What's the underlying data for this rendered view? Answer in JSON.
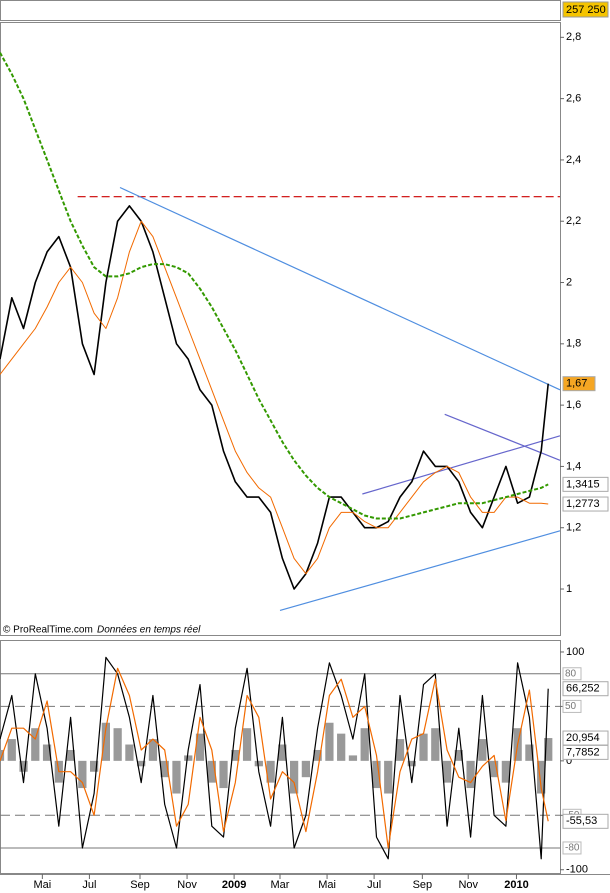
{
  "chart_data": [
    {
      "type": "line",
      "footnote": "© ProRealTime.com",
      "footnote2": "Données en temps réel",
      "volume_label": {
        "value": 257250,
        "label": "257 250"
      },
      "xlim": [
        0,
        23.8
      ],
      "ylim": [
        0.85,
        2.85
      ],
      "yticks": [
        {
          "value": 2.8,
          "label": "2,8"
        },
        {
          "value": 2.6,
          "label": "2,6"
        },
        {
          "value": 2.4,
          "label": "2,4"
        },
        {
          "value": 2.2,
          "label": "2,2"
        },
        2,
        {
          "value": 1.8,
          "label": "1,8"
        },
        {
          "value": 1.6,
          "label": "1,6"
        },
        {
          "value": 1.4,
          "label": "1,4"
        },
        {
          "value": 1.2,
          "label": "1,2"
        },
        1
      ],
      "x": [
        0,
        0.5,
        1,
        1.5,
        2,
        2.5,
        3,
        3.5,
        4,
        4.5,
        5,
        5.5,
        6,
        6.5,
        7,
        7.5,
        8,
        8.5,
        9,
        9.5,
        10,
        10.5,
        11,
        11.5,
        12,
        12.5,
        13,
        13.5,
        14,
        14.5,
        15,
        15.5,
        16,
        16.5,
        17,
        17.5,
        18,
        18.5,
        19,
        19.5,
        20,
        20.5,
        21,
        21.5,
        22,
        22.5,
        23,
        23.3
      ],
      "series": [
        {
          "color": "#000000",
          "width": 1.6,
          "values": [
            1.75,
            1.95,
            1.85,
            2.0,
            2.1,
            2.15,
            2.05,
            1.8,
            1.7,
            2.0,
            2.2,
            2.25,
            2.2,
            2.1,
            1.95,
            1.8,
            1.75,
            1.65,
            1.6,
            1.45,
            1.35,
            1.3,
            1.3,
            1.25,
            1.1,
            1.0,
            1.05,
            1.15,
            1.3,
            1.3,
            1.25,
            1.2,
            1.2,
            1.22,
            1.3,
            1.35,
            1.45,
            1.4,
            1.4,
            1.35,
            1.25,
            1.2,
            1.3,
            1.4,
            1.28,
            1.3,
            1.45,
            1.67
          ]
        },
        {
          "color": "#f26a00",
          "width": 1,
          "values": [
            1.7,
            1.75,
            1.8,
            1.85,
            1.92,
            2.0,
            2.05,
            2.0,
            1.9,
            1.85,
            1.95,
            2.1,
            2.2,
            2.15,
            2.05,
            1.95,
            1.85,
            1.75,
            1.65,
            1.55,
            1.45,
            1.38,
            1.33,
            1.3,
            1.2,
            1.1,
            1.05,
            1.1,
            1.2,
            1.25,
            1.25,
            1.22,
            1.2,
            1.2,
            1.25,
            1.3,
            1.35,
            1.38,
            1.4,
            1.38,
            1.3,
            1.25,
            1.25,
            1.3,
            1.3,
            1.28,
            1.28,
            1.2773
          ]
        },
        {
          "color": "#339900",
          "width": 2,
          "dash": true,
          "values": [
            2.75,
            2.68,
            2.6,
            2.5,
            2.4,
            2.3,
            2.2,
            2.12,
            2.05,
            2.02,
            2.02,
            2.03,
            2.05,
            2.06,
            2.06,
            2.05,
            2.03,
            1.98,
            1.92,
            1.85,
            1.78,
            1.7,
            1.62,
            1.55,
            1.48,
            1.42,
            1.37,
            1.33,
            1.3,
            1.28,
            1.26,
            1.24,
            1.23,
            1.23,
            1.23,
            1.24,
            1.25,
            1.26,
            1.27,
            1.28,
            1.28,
            1.28,
            1.29,
            1.3,
            1.31,
            1.32,
            1.33,
            1.3415
          ]
        }
      ],
      "lines": [
        {
          "color": "#cc0000",
          "dash": true,
          "x": [
            3.3,
            23.8
          ],
          "y": [
            2.28,
            2.28
          ]
        },
        {
          "color": "#4f8ee0",
          "x": [
            5.1,
            23.8
          ],
          "y": [
            2.31,
            1.65
          ]
        },
        {
          "color": "#4f8ee0",
          "x": [
            11.9,
            23.8
          ],
          "y": [
            0.93,
            1.19
          ]
        },
        {
          "color": "#6666cc",
          "x": [
            18.9,
            23.8
          ],
          "y": [
            1.57,
            1.42
          ]
        },
        {
          "color": "#6666cc",
          "x": [
            15.4,
            23.8
          ],
          "y": [
            1.31,
            1.5
          ]
        }
      ],
      "last_labels": [
        {
          "value": 1.67,
          "label": "1,67",
          "color": "#f5a623",
          "text_color": "#000000"
        },
        {
          "value": 1.3415,
          "label": "1,3415",
          "color": "#ffffff",
          "text_color": "#339900"
        },
        {
          "value": 1.2773,
          "label": "1,2773",
          "color": "#ffffff",
          "text_color": "#f26a00"
        }
      ]
    },
    {
      "type": "line",
      "xlim": [
        0,
        23.8
      ],
      "ylim": [
        -103,
        111
      ],
      "yticks": [
        100,
        50,
        0,
        -50,
        -100
      ],
      "xticks": [
        {
          "value": 1.8,
          "label": "Mai"
        },
        {
          "value": 3.8,
          "label": "Jul"
        },
        {
          "value": 5.95,
          "label": "Sep"
        },
        {
          "value": 7.95,
          "label": "Nov"
        },
        {
          "value": 9.95,
          "label": "2009"
        },
        {
          "value": 11.9,
          "label": "Mar"
        },
        {
          "value": 13.9,
          "label": "Mai"
        },
        {
          "value": 15.9,
          "label": "Jul"
        },
        {
          "value": 17.95,
          "label": "Sep"
        },
        {
          "value": 19.9,
          "label": "Nov"
        },
        {
          "value": 21.95,
          "label": "2010"
        }
      ],
      "x": [
        0,
        0.5,
        1,
        1.5,
        2,
        2.5,
        3,
        3.5,
        4,
        4.5,
        5,
        5.5,
        6,
        6.5,
        7,
        7.5,
        8,
        8.5,
        9,
        9.5,
        10,
        10.5,
        11,
        11.5,
        12,
        12.5,
        13,
        13.5,
        14,
        14.5,
        15,
        15.5,
        16,
        16.5,
        17,
        17.5,
        18,
        18.5,
        19,
        19.5,
        20,
        20.5,
        21,
        21.5,
        22,
        22.5,
        23,
        23.3
      ],
      "histogram": {
        "color": "#999999",
        "values": [
          10,
          20,
          -10,
          30,
          15,
          -20,
          10,
          -25,
          -10,
          35,
          30,
          15,
          -5,
          20,
          -15,
          -30,
          5,
          25,
          -20,
          -25,
          10,
          30,
          -5,
          -20,
          15,
          -30,
          -15,
          10,
          35,
          25,
          5,
          30,
          -25,
          -30,
          20,
          -5,
          25,
          30,
          -20,
          10,
          -25,
          20,
          -15,
          -20,
          30,
          15,
          -30,
          20.954
        ]
      },
      "series": [
        {
          "color": "#000000",
          "width": 1.2,
          "values": [
            20,
            60,
            -20,
            80,
            30,
            -60,
            40,
            -80,
            -30,
            95,
            80,
            40,
            -20,
            60,
            -40,
            -80,
            10,
            70,
            -60,
            -70,
            30,
            85,
            -10,
            -60,
            40,
            -80,
            -50,
            30,
            90,
            60,
            20,
            80,
            -70,
            -90,
            60,
            -20,
            70,
            80,
            -60,
            30,
            -70,
            60,
            -50,
            -60,
            90,
            40,
            -90,
            66.252
          ]
        },
        {
          "color": "#f26a00",
          "width": 1.2,
          "values": [
            0,
            30,
            30,
            20,
            55,
            -10,
            -10,
            -20,
            -50,
            30,
            85,
            60,
            10,
            20,
            10,
            -60,
            -40,
            40,
            10,
            -65,
            -20,
            60,
            40,
            -35,
            -10,
            -20,
            -65,
            -10,
            60,
            75,
            40,
            50,
            5,
            -80,
            -10,
            20,
            25,
            75,
            10,
            -15,
            -20,
            -5,
            5,
            -55,
            15,
            65,
            -25,
            -55.53
          ]
        }
      ],
      "ref_lines": [
        {
          "value": 80,
          "label": "80",
          "dash": false
        },
        {
          "value": 50,
          "label": "50",
          "dash": true
        },
        {
          "value": -50,
          "label": "-50",
          "dash": true
        },
        {
          "value": -80,
          "label": "-80",
          "dash": false
        }
      ],
      "last_labels": [
        {
          "value": 66.252,
          "label": "66,252",
          "color": "#ffffff",
          "text_color": "#000000"
        },
        {
          "value": 20.954,
          "label": "20,954",
          "color": "#ffffff",
          "text_color": "#888888"
        },
        {
          "value": 7.7852,
          "label": "7,7852",
          "color": "#ffffff",
          "text_color": "#339900"
        },
        {
          "value": -55.53,
          "label": "-55,53",
          "color": "#ffffff",
          "text_color": "#f26a00"
        }
      ]
    }
  ]
}
